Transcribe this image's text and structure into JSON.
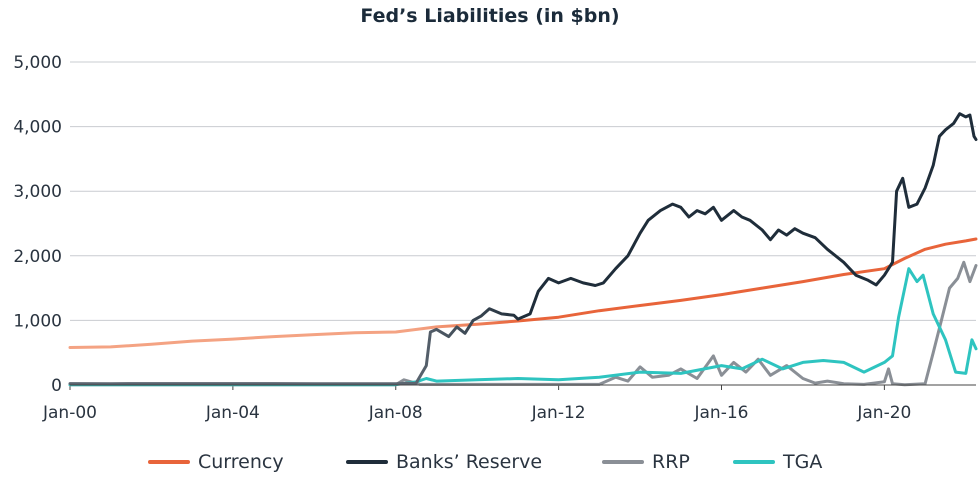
{
  "chart_data": {
    "type": "line",
    "title": "Fed’s Liabilities (in $bn)",
    "xlabel": "",
    "ylabel": "",
    "xlim": [
      2000.0,
      2022.25
    ],
    "ylim": [
      0,
      5000
    ],
    "y_ticks": [
      {
        "value": 0,
        "label": "0"
      },
      {
        "value": 1000,
        "label": "1,000"
      },
      {
        "value": 2000,
        "label": "2,000"
      },
      {
        "value": 3000,
        "label": "3,000"
      },
      {
        "value": 4000,
        "label": "4,000"
      },
      {
        "value": 5000,
        "label": "5,000"
      }
    ],
    "x_ticks": [
      {
        "value": 2000,
        "label": "Jan-00"
      },
      {
        "value": 2004,
        "label": "Jan-04"
      },
      {
        "value": 2008,
        "label": "Jan-08"
      },
      {
        "value": 2012,
        "label": "Jan-12"
      },
      {
        "value": 2016,
        "label": "Jan-16"
      },
      {
        "value": 2020,
        "label": "Jan-20"
      }
    ],
    "grid": "horizontal",
    "legend_position": "bottom",
    "series": [
      {
        "name": "Currency",
        "color": "#e8643a",
        "color_start": "#f4a383",
        "points": [
          [
            2000.0,
            580
          ],
          [
            2001.0,
            590
          ],
          [
            2002.0,
            630
          ],
          [
            2003.0,
            680
          ],
          [
            2004.0,
            710
          ],
          [
            2005.0,
            750
          ],
          [
            2006.0,
            780
          ],
          [
            2007.0,
            810
          ],
          [
            2008.0,
            820
          ],
          [
            2009.0,
            900
          ],
          [
            2010.0,
            940
          ],
          [
            2011.0,
            990
          ],
          [
            2012.0,
            1050
          ],
          [
            2013.0,
            1150
          ],
          [
            2014.0,
            1230
          ],
          [
            2015.0,
            1310
          ],
          [
            2016.0,
            1400
          ],
          [
            2017.0,
            1500
          ],
          [
            2018.0,
            1600
          ],
          [
            2019.0,
            1710
          ],
          [
            2020.0,
            1800
          ],
          [
            2020.5,
            1960
          ],
          [
            2021.0,
            2100
          ],
          [
            2021.5,
            2180
          ],
          [
            2022.0,
            2230
          ],
          [
            2022.25,
            2260
          ]
        ]
      },
      {
        "name": "Banks’ Reserve",
        "color": "#1f2d3a",
        "color_start": "#5b6570",
        "points": [
          [
            2000.0,
            22
          ],
          [
            2001.0,
            20
          ],
          [
            2002.0,
            22
          ],
          [
            2003.0,
            22
          ],
          [
            2004.0,
            22
          ],
          [
            2005.0,
            22
          ],
          [
            2006.0,
            20
          ],
          [
            2007.0,
            20
          ],
          [
            2008.0,
            20
          ],
          [
            2008.5,
            30
          ],
          [
            2008.75,
            300
          ],
          [
            2008.85,
            820
          ],
          [
            2009.0,
            860
          ],
          [
            2009.3,
            750
          ],
          [
            2009.5,
            900
          ],
          [
            2009.7,
            800
          ],
          [
            2009.9,
            1000
          ],
          [
            2010.1,
            1070
          ],
          [
            2010.3,
            1180
          ],
          [
            2010.6,
            1100
          ],
          [
            2010.9,
            1080
          ],
          [
            2011.0,
            1020
          ],
          [
            2011.3,
            1100
          ],
          [
            2011.5,
            1450
          ],
          [
            2011.75,
            1650
          ],
          [
            2012.0,
            1580
          ],
          [
            2012.3,
            1650
          ],
          [
            2012.6,
            1580
          ],
          [
            2012.9,
            1540
          ],
          [
            2013.1,
            1580
          ],
          [
            2013.4,
            1800
          ],
          [
            2013.7,
            2000
          ],
          [
            2014.0,
            2350
          ],
          [
            2014.2,
            2550
          ],
          [
            2014.5,
            2700
          ],
          [
            2014.8,
            2800
          ],
          [
            2015.0,
            2750
          ],
          [
            2015.2,
            2600
          ],
          [
            2015.4,
            2700
          ],
          [
            2015.6,
            2650
          ],
          [
            2015.8,
            2750
          ],
          [
            2016.0,
            2550
          ],
          [
            2016.3,
            2700
          ],
          [
            2016.5,
            2600
          ],
          [
            2016.7,
            2550
          ],
          [
            2017.0,
            2400
          ],
          [
            2017.2,
            2250
          ],
          [
            2017.4,
            2400
          ],
          [
            2017.6,
            2320
          ],
          [
            2017.8,
            2420
          ],
          [
            2018.0,
            2350
          ],
          [
            2018.3,
            2280
          ],
          [
            2018.6,
            2100
          ],
          [
            2019.0,
            1900
          ],
          [
            2019.3,
            1700
          ],
          [
            2019.6,
            1620
          ],
          [
            2019.8,
            1550
          ],
          [
            2020.0,
            1700
          ],
          [
            2020.2,
            1900
          ],
          [
            2020.3,
            3000
          ],
          [
            2020.45,
            3200
          ],
          [
            2020.6,
            2750
          ],
          [
            2020.8,
            2800
          ],
          [
            2021.0,
            3050
          ],
          [
            2021.2,
            3400
          ],
          [
            2021.35,
            3850
          ],
          [
            2021.5,
            3950
          ],
          [
            2021.7,
            4050
          ],
          [
            2021.85,
            4200
          ],
          [
            2022.0,
            4150
          ],
          [
            2022.1,
            4180
          ],
          [
            2022.2,
            3850
          ],
          [
            2022.25,
            3800
          ]
        ]
      },
      {
        "name": "RRP",
        "color": "#8a8f96",
        "color_start": "#8a8f96",
        "points": [
          [
            2000.0,
            5
          ],
          [
            2008.0,
            5
          ],
          [
            2008.2,
            80
          ],
          [
            2008.6,
            10
          ],
          [
            2013.0,
            10
          ],
          [
            2013.4,
            120
          ],
          [
            2013.7,
            60
          ],
          [
            2014.0,
            280
          ],
          [
            2014.3,
            120
          ],
          [
            2014.7,
            150
          ],
          [
            2015.0,
            250
          ],
          [
            2015.4,
            100
          ],
          [
            2015.8,
            450
          ],
          [
            2016.0,
            150
          ],
          [
            2016.3,
            350
          ],
          [
            2016.6,
            200
          ],
          [
            2016.9,
            400
          ],
          [
            2017.2,
            150
          ],
          [
            2017.6,
            300
          ],
          [
            2018.0,
            100
          ],
          [
            2018.3,
            30
          ],
          [
            2018.6,
            60
          ],
          [
            2019.0,
            20
          ],
          [
            2019.5,
            10
          ],
          [
            2020.0,
            50
          ],
          [
            2020.1,
            250
          ],
          [
            2020.2,
            20
          ],
          [
            2020.5,
            5
          ],
          [
            2021.0,
            20
          ],
          [
            2021.2,
            500
          ],
          [
            2021.4,
            1000
          ],
          [
            2021.6,
            1500
          ],
          [
            2021.8,
            1650
          ],
          [
            2021.95,
            1900
          ],
          [
            2022.1,
            1600
          ],
          [
            2022.25,
            1850
          ]
        ]
      },
      {
        "name": "TGA",
        "color": "#2ec4c0",
        "color_start": "#2ec4c0",
        "points": [
          [
            2000.0,
            5
          ],
          [
            2008.0,
            5
          ],
          [
            2008.5,
            50
          ],
          [
            2008.75,
            100
          ],
          [
            2009.0,
            60
          ],
          [
            2010.0,
            80
          ],
          [
            2011.0,
            100
          ],
          [
            2012.0,
            80
          ],
          [
            2013.0,
            120
          ],
          [
            2014.0,
            200
          ],
          [
            2015.0,
            180
          ],
          [
            2016.0,
            300
          ],
          [
            2016.5,
            250
          ],
          [
            2017.0,
            400
          ],
          [
            2017.5,
            250
          ],
          [
            2018.0,
            350
          ],
          [
            2018.5,
            380
          ],
          [
            2019.0,
            350
          ],
          [
            2019.5,
            200
          ],
          [
            2020.0,
            350
          ],
          [
            2020.2,
            450
          ],
          [
            2020.35,
            1050
          ],
          [
            2020.6,
            1800
          ],
          [
            2020.8,
            1600
          ],
          [
            2020.95,
            1700
          ],
          [
            2021.2,
            1100
          ],
          [
            2021.5,
            700
          ],
          [
            2021.75,
            200
          ],
          [
            2022.0,
            180
          ],
          [
            2022.15,
            700
          ],
          [
            2022.25,
            560
          ]
        ]
      }
    ]
  }
}
